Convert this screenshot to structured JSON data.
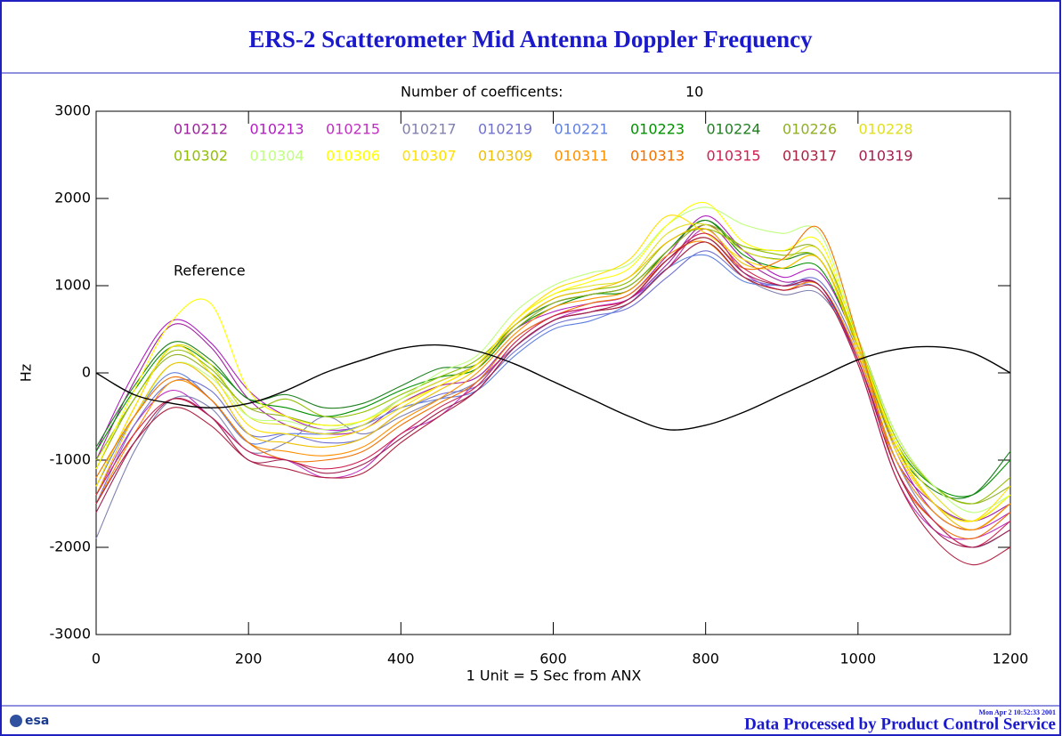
{
  "chart_data": {
    "type": "line",
    "title": "ERS-2 Scatterometer Mid Antenna Doppler Frequency",
    "subtitle": "Number of coefficents:",
    "subtitle_value": "10",
    "x_label": "1 Unit  = 5 Sec from ANX",
    "y_label": "Hz",
    "annotation": "Reference",
    "footer": "Data Processed by Product Control Service",
    "timestamp": "Mon Apr  2 10:52:33 2001",
    "logo": "esa",
    "xlim": [
      0,
      1200
    ],
    "ylim": [
      -3000,
      3000
    ],
    "xticks": [
      0,
      200,
      400,
      600,
      800,
      1000,
      1200
    ],
    "yticks": [
      -3000,
      -2000,
      -1000,
      0,
      1000,
      2000,
      3000
    ],
    "x": [
      0,
      50,
      100,
      150,
      200,
      250,
      300,
      350,
      400,
      450,
      500,
      550,
      600,
      650,
      700,
      750,
      800,
      850,
      900,
      950,
      1000,
      1050,
      1100,
      1150,
      1200
    ],
    "series": [
      {
        "name": "010212",
        "color": "#a020a0",
        "values": [
          -1000,
          -100,
          550,
          300,
          -300,
          -600,
          -700,
          -650,
          -350,
          -150,
          -50,
          400,
          650,
          750,
          850,
          1250,
          1700,
          1300,
          1050,
          1000,
          150,
          -1000,
          -1500,
          -1700,
          -1500
        ]
      },
      {
        "name": "010213",
        "color": "#b020c0",
        "values": [
          -900,
          0,
          600,
          350,
          -200,
          -500,
          -650,
          -600,
          -300,
          -100,
          100,
          500,
          700,
          800,
          900,
          1350,
          1800,
          1400,
          1100,
          1150,
          300,
          -900,
          -1600,
          -1800,
          -1600
        ]
      },
      {
        "name": "010215",
        "color": "#c030c0",
        "values": [
          -1400,
          -600,
          -200,
          -500,
          -900,
          -1000,
          -1200,
          -1100,
          -700,
          -500,
          -100,
          300,
          600,
          750,
          850,
          1200,
          1650,
          1150,
          950,
          1000,
          100,
          -1200,
          -1800,
          -1900,
          -1700
        ]
      },
      {
        "name": "010217",
        "color": "#8080b0",
        "values": [
          -1900,
          -900,
          -300,
          -400,
          -900,
          -800,
          -500,
          -700,
          -500,
          -300,
          -100,
          300,
          600,
          700,
          800,
          1200,
          1500,
          1100,
          900,
          900,
          200,
          -1000,
          -1700,
          -2000,
          -1800
        ]
      },
      {
        "name": "010219",
        "color": "#7070d0",
        "values": [
          -1500,
          -600,
          -100,
          -200,
          -700,
          -700,
          -800,
          -750,
          -450,
          -250,
          -150,
          250,
          550,
          650,
          750,
          1100,
          1400,
          1100,
          1000,
          1050,
          250,
          -900,
          -1500,
          -1700,
          -1400
        ]
      },
      {
        "name": "010221",
        "color": "#6080e0",
        "values": [
          -1300,
          -500,
          0,
          -300,
          -800,
          -700,
          -700,
          -600,
          -400,
          -300,
          -200,
          200,
          500,
          600,
          800,
          1200,
          1350,
          1050,
          1000,
          950,
          200,
          -1000,
          -1600,
          -1800,
          -1500
        ]
      },
      {
        "name": "010223",
        "color": "#009000",
        "values": [
          -900,
          -200,
          300,
          100,
          -300,
          -400,
          -500,
          -400,
          -200,
          -50,
          50,
          500,
          750,
          900,
          950,
          1400,
          1750,
          1350,
          1200,
          1200,
          300,
          -800,
          -1300,
          -1400,
          -1000
        ]
      },
      {
        "name": "010224",
        "color": "#208020",
        "values": [
          -850,
          -150,
          350,
          150,
          -300,
          -250,
          -400,
          -350,
          -150,
          50,
          100,
          550,
          800,
          900,
          1000,
          1400,
          1750,
          1400,
          1300,
          1300,
          300,
          -850,
          -1350,
          -1400,
          -900
        ]
      },
      {
        "name": "010226",
        "color": "#90b020",
        "values": [
          -1100,
          -300,
          200,
          0,
          -400,
          -500,
          -600,
          -550,
          -300,
          -100,
          100,
          500,
          800,
          900,
          1000,
          1400,
          1700,
          1450,
          1400,
          1400,
          400,
          -700,
          -1300,
          -1500,
          -1300
        ]
      },
      {
        "name": "010228",
        "color": "#e0e020",
        "values": [
          -1300,
          -400,
          300,
          100,
          -500,
          -600,
          -700,
          -600,
          -300,
          -100,
          100,
          600,
          900,
          1000,
          1100,
          1600,
          1700,
          1400,
          1300,
          1400,
          300,
          -800,
          -1400,
          -1700,
          -1400
        ]
      },
      {
        "name": "010302",
        "color": "#90c000",
        "values": [
          -1000,
          -300,
          250,
          50,
          -400,
          -300,
          -500,
          -450,
          -250,
          -50,
          150,
          550,
          850,
          950,
          1050,
          1500,
          1650,
          1450,
          1350,
          1300,
          350,
          -750,
          -1300,
          -1500,
          -1200
        ]
      },
      {
        "name": "010304",
        "color": "#c0ff80",
        "values": [
          -1200,
          -500,
          100,
          -50,
          -500,
          -550,
          -650,
          -550,
          -300,
          0,
          200,
          700,
          1000,
          1150,
          1250,
          1700,
          1900,
          1700,
          1600,
          1600,
          400,
          -700,
          -1300,
          -1600,
          -1400
        ]
      },
      {
        "name": "010306",
        "color": "#ffff00",
        "values": [
          -1100,
          -200,
          600,
          800,
          -200,
          -500,
          -600,
          -550,
          -350,
          -150,
          100,
          600,
          900,
          1050,
          1200,
          1700,
          1950,
          1500,
          1400,
          1500,
          350,
          -800,
          -1500,
          -1700,
          -1400
        ]
      },
      {
        "name": "010307",
        "color": "#ffe000",
        "values": [
          -1300,
          -400,
          300,
          0,
          -600,
          -700,
          -750,
          -650,
          -400,
          -150,
          100,
          600,
          950,
          1100,
          1300,
          1800,
          1600,
          1300,
          1200,
          1300,
          250,
          -900,
          -1500,
          -1700,
          -1300
        ]
      },
      {
        "name": "010309",
        "color": "#f0c000",
        "values": [
          -1400,
          -500,
          100,
          -100,
          -700,
          -800,
          -850,
          -750,
          -450,
          -200,
          50,
          550,
          850,
          950,
          1100,
          1500,
          1650,
          1250,
          1200,
          1300,
          300,
          -850,
          -1500,
          -1800,
          -1500
        ]
      },
      {
        "name": "010311",
        "color": "#ff9000",
        "values": [
          -1500,
          -700,
          -100,
          -300,
          -800,
          -900,
          -950,
          -850,
          -550,
          -300,
          0,
          450,
          750,
          850,
          950,
          1350,
          1500,
          1100,
          950,
          1000,
          200,
          -1000,
          -1600,
          -1800,
          -1500
        ]
      },
      {
        "name": "010313",
        "color": "#f07000",
        "values": [
          -1200,
          -500,
          -50,
          -300,
          -800,
          -1000,
          -1000,
          -900,
          -600,
          -350,
          -100,
          400,
          650,
          800,
          900,
          1300,
          1550,
          1200,
          1300,
          1650,
          400,
          -1100,
          -1700,
          -1900,
          -1600
        ]
      },
      {
        "name": "010315",
        "color": "#d02050",
        "values": [
          -1400,
          -700,
          -300,
          -500,
          -900,
          -1000,
          -1100,
          -1000,
          -700,
          -400,
          -150,
          350,
          650,
          750,
          850,
          1300,
          1600,
          1200,
          1000,
          1000,
          150,
          -1100,
          -1700,
          -2000,
          -1700
        ]
      },
      {
        "name": "010317",
        "color": "#b02040",
        "values": [
          -1500,
          -800,
          -400,
          -600,
          -1000,
          -1100,
          -1200,
          -1150,
          -800,
          -500,
          -200,
          300,
          600,
          700,
          800,
          1200,
          1500,
          1100,
          950,
          950,
          100,
          -1200,
          -1900,
          -2200,
          -2000
        ]
      },
      {
        "name": "010319",
        "color": "#a02050",
        "values": [
          -1600,
          -800,
          -300,
          -500,
          -1000,
          -1000,
          -1150,
          -1050,
          -750,
          -450,
          -200,
          300,
          600,
          700,
          850,
          1300,
          1550,
          1150,
          1000,
          1000,
          150,
          -1100,
          -1800,
          -2000,
          -1800
        ]
      }
    ],
    "reference": {
      "color": "#000000",
      "values": [
        0,
        -250,
        -350,
        -400,
        -350,
        -200,
        0,
        150,
        280,
        320,
        250,
        100,
        -100,
        -300,
        -500,
        -650,
        -600,
        -450,
        -250,
        -50,
        150,
        270,
        300,
        230,
        0
      ]
    }
  }
}
